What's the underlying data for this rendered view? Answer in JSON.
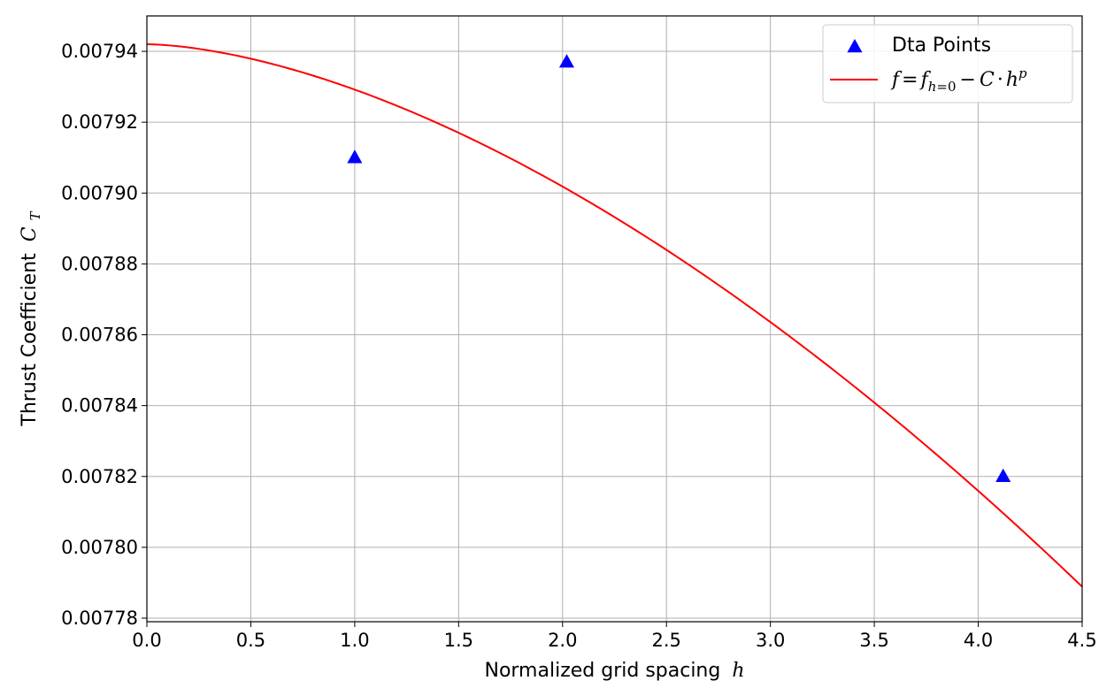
{
  "chart_data": {
    "type": "scatter",
    "xlabel": "Normalized grid spacing",
    "xlabel_var": "h",
    "ylabel": "Thrust Coefficient",
    "ylabel_var": "C",
    "ylabel_sub": "T",
    "xlim": [
      0.0,
      4.5
    ],
    "ylim": [
      0.007779,
      0.00795
    ],
    "x_ticks": [
      0.0,
      0.5,
      1.0,
      1.5,
      2.0,
      2.5,
      3.0,
      3.5,
      4.0,
      4.5
    ],
    "x_tick_labels": [
      "0.0",
      "0.5",
      "1.0",
      "1.5",
      "2.0",
      "2.5",
      "3.0",
      "3.5",
      "4.0",
      "4.5"
    ],
    "y_ticks": [
      0.00778,
      0.0078,
      0.00782,
      0.00784,
      0.00786,
      0.00788,
      0.0079,
      0.00792,
      0.00794
    ],
    "y_tick_labels": [
      "0.00778",
      "0.00780",
      "0.00782",
      "0.00784",
      "0.00786",
      "0.00788",
      "0.00790",
      "0.00792",
      "0.00794"
    ],
    "grid": true,
    "legend_position": "top-right",
    "series": [
      {
        "name": "Dta Points",
        "kind": "scatter",
        "marker": "triangle-up",
        "color": "#0000ff",
        "x": [
          1.0,
          2.02,
          4.12
        ],
        "y": [
          0.00791,
          0.007937,
          0.00782
        ]
      },
      {
        "name": "f = f_{h=0} − C·h^p",
        "kind": "line",
        "color": "#ff0000",
        "fit": {
          "f0": 0.007942,
          "C": 1.28e-05,
          "p": 1.65
        }
      }
    ]
  }
}
